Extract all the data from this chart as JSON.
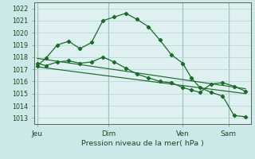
{
  "bg_color": "#cce8e8",
  "plot_bg_color": "#dff0f0",
  "grid_color": "#aad4d4",
  "line_color": "#1a6b2a",
  "ylabel": "Pression niveau de la mer( hPa )",
  "ylim": [
    1012.5,
    1022.5
  ],
  "yticks": [
    1013,
    1014,
    1015,
    1016,
    1017,
    1018,
    1019,
    1020,
    1021,
    1022
  ],
  "day_labels": [
    "Jeu",
    "Dim",
    "Ven",
    "Sam"
  ],
  "day_positions": [
    0.5,
    13,
    26,
    34
  ],
  "xlim": [
    0,
    38
  ],
  "series1_x": [
    0.5,
    2,
    4,
    6,
    8,
    10,
    12,
    14,
    16,
    18,
    20,
    22,
    24,
    26,
    27.5,
    29,
    31,
    33,
    35,
    37
  ],
  "series1_y": [
    1017.3,
    1017.9,
    1019.0,
    1019.3,
    1018.7,
    1019.2,
    1021.0,
    1021.3,
    1021.6,
    1021.1,
    1020.5,
    1019.4,
    1018.2,
    1017.5,
    1016.3,
    1015.5,
    1015.1,
    1014.8,
    1013.2,
    1013.1
  ],
  "series2_x": [
    0.5,
    2,
    4,
    6,
    8,
    10,
    12,
    14,
    16,
    18,
    20,
    22,
    24,
    26,
    27.5,
    29,
    31,
    33,
    35,
    37
  ],
  "series2_y": [
    1017.5,
    1017.3,
    1017.6,
    1017.7,
    1017.5,
    1017.6,
    1018.0,
    1017.6,
    1017.1,
    1016.6,
    1016.3,
    1016.0,
    1015.9,
    1015.5,
    1015.3,
    1015.1,
    1015.8,
    1015.9,
    1015.6,
    1015.2
  ],
  "trend1_x": [
    0.5,
    37
  ],
  "trend1_y": [
    1017.9,
    1015.4
  ],
  "trend2_x": [
    0.5,
    37
  ],
  "trend2_y": [
    1017.2,
    1015.0
  ],
  "sep_color": "#779988",
  "spine_color": "#556655"
}
